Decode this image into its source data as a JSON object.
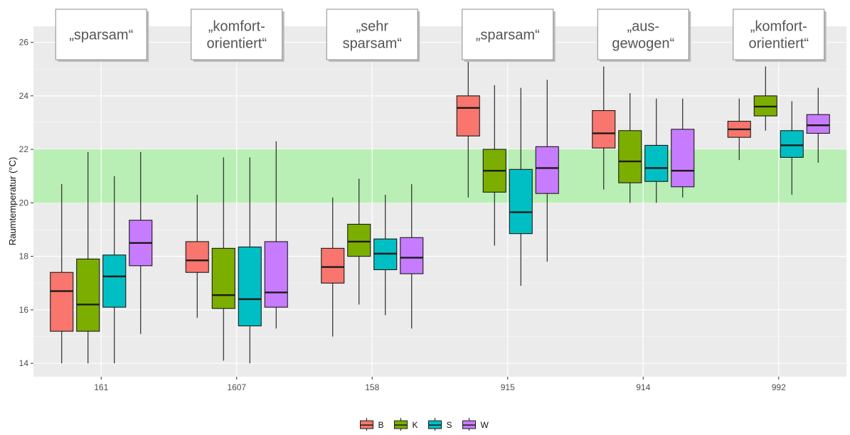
{
  "chart_data": {
    "type": "boxplot",
    "ylabel": "Raumtemperatur (°C)",
    "xlabel": "",
    "ylim": [
      13.5,
      26.6
    ],
    "y_ticks": [
      14,
      16,
      18,
      20,
      22,
      24,
      26
    ],
    "categories": [
      "161",
      "1607",
      "158",
      "915",
      "914",
      "992"
    ],
    "comfort_band": {
      "min": 20,
      "max": 22,
      "color": "#b9eeb5"
    },
    "annotations": [
      {
        "category": "161",
        "lines": [
          "„sparsam“"
        ]
      },
      {
        "category": "1607",
        "lines": [
          "„komfort-",
          "orientiert“"
        ]
      },
      {
        "category": "158",
        "lines": [
          "„sehr",
          "sparsam“"
        ]
      },
      {
        "category": "915",
        "lines": [
          "„sparsam“"
        ]
      },
      {
        "category": "914",
        "lines": [
          "„aus-",
          "gewogen“"
        ]
      },
      {
        "category": "992",
        "lines": [
          "„komfort-",
          "orientiert“"
        ]
      }
    ],
    "series": [
      {
        "name": "B",
        "color": "#f8766d",
        "boxes": [
          {
            "min": 14.0,
            "q1": 15.2,
            "median": 16.7,
            "q3": 17.4,
            "max": 20.7
          },
          {
            "min": 15.7,
            "q1": 17.4,
            "median": 17.85,
            "q3": 18.55,
            "max": 20.3
          },
          {
            "min": 15.0,
            "q1": 17.0,
            "median": 17.6,
            "q3": 18.3,
            "max": 20.2
          },
          {
            "min": 20.2,
            "q1": 22.5,
            "median": 23.55,
            "q3": 24.0,
            "max": 25.4
          },
          {
            "min": 20.5,
            "q1": 22.05,
            "median": 22.6,
            "q3": 23.45,
            "max": 25.1
          },
          {
            "min": 21.6,
            "q1": 22.45,
            "median": 22.75,
            "q3": 23.05,
            "max": 23.9
          }
        ]
      },
      {
        "name": "K",
        "color": "#7cae00",
        "boxes": [
          {
            "min": 14.0,
            "q1": 15.2,
            "median": 16.2,
            "q3": 17.9,
            "max": 21.9
          },
          {
            "min": 14.1,
            "q1": 16.05,
            "median": 16.55,
            "q3": 18.3,
            "max": 21.7
          },
          {
            "min": 16.2,
            "q1": 18.0,
            "median": 18.55,
            "q3": 19.2,
            "max": 20.9
          },
          {
            "min": 18.4,
            "q1": 20.4,
            "median": 21.2,
            "q3": 22.0,
            "max": 24.4
          },
          {
            "min": 20.0,
            "q1": 20.75,
            "median": 21.55,
            "q3": 22.7,
            "max": 24.1
          },
          {
            "min": 22.7,
            "q1": 23.25,
            "median": 23.6,
            "q3": 24.0,
            "max": 25.1
          }
        ]
      },
      {
        "name": "S",
        "color": "#00bfc4",
        "boxes": [
          {
            "min": 14.0,
            "q1": 16.1,
            "median": 17.25,
            "q3": 18.05,
            "max": 21.0
          },
          {
            "min": 14.0,
            "q1": 15.4,
            "median": 16.4,
            "q3": 18.35,
            "max": 21.7
          },
          {
            "min": 15.8,
            "q1": 17.5,
            "median": 18.1,
            "q3": 18.65,
            "max": 20.3
          },
          {
            "min": 16.9,
            "q1": 18.85,
            "median": 19.65,
            "q3": 21.25,
            "max": 24.3
          },
          {
            "min": 20.0,
            "q1": 20.8,
            "median": 21.3,
            "q3": 22.15,
            "max": 23.9
          },
          {
            "min": 20.3,
            "q1": 21.7,
            "median": 22.15,
            "q3": 22.7,
            "max": 23.8
          }
        ]
      },
      {
        "name": "W",
        "color": "#c77cff",
        "boxes": [
          {
            "min": 15.1,
            "q1": 17.65,
            "median": 18.5,
            "q3": 19.35,
            "max": 21.9
          },
          {
            "min": 15.3,
            "q1": 16.1,
            "median": 16.65,
            "q3": 18.55,
            "max": 22.3
          },
          {
            "min": 15.3,
            "q1": 17.35,
            "median": 17.95,
            "q3": 18.7,
            "max": 20.7
          },
          {
            "min": 17.8,
            "q1": 20.35,
            "median": 21.3,
            "q3": 22.1,
            "max": 24.6
          },
          {
            "min": 20.2,
            "q1": 20.6,
            "median": 21.2,
            "q3": 22.75,
            "max": 23.9
          },
          {
            "min": 21.5,
            "q1": 22.6,
            "median": 22.9,
            "q3": 23.3,
            "max": 24.3
          }
        ]
      }
    ],
    "legend": {
      "position": "bottom",
      "entries": [
        "B",
        "K",
        "S",
        "W"
      ]
    },
    "grid": true,
    "background_color": "#ebebeb"
  }
}
